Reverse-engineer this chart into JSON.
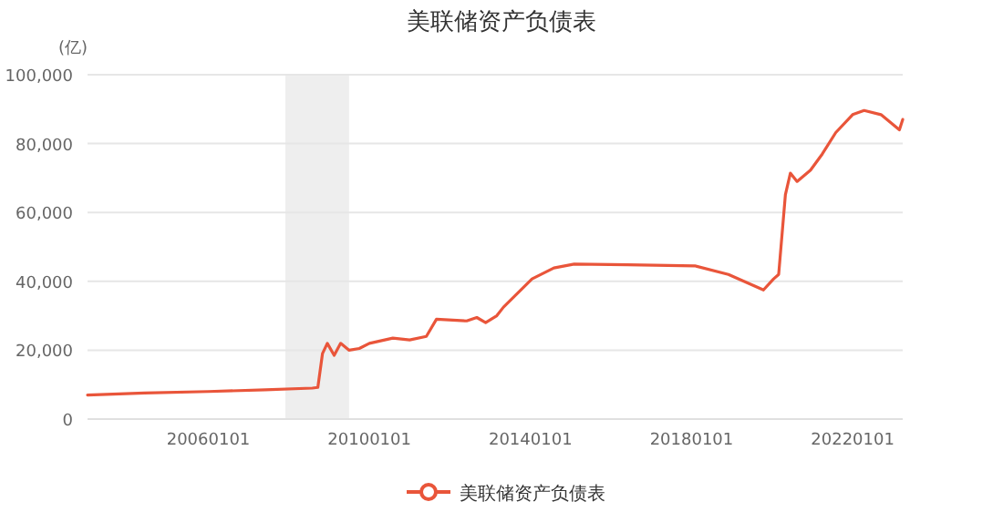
{
  "chart_data": {
    "type": "line",
    "title": "美联储资产负债表",
    "ylabel": "(亿)",
    "x": [
      "2003-01-01",
      "2004-06-01",
      "2006-01-01",
      "2007-06-01",
      "2008-08-01",
      "2008-09-20",
      "2008-11-01",
      "2008-12-15",
      "2009-02-15",
      "2009-04-15",
      "2009-07-01",
      "2009-10-01",
      "2010-01-01",
      "2010-08-01",
      "2011-01-01",
      "2011-06-01",
      "2011-09-01",
      "2012-06-01",
      "2012-09-01",
      "2012-11-20",
      "2013-03-01",
      "2013-05-01",
      "2014-01-15",
      "2014-08-01",
      "2015-02-01",
      "2016-06-01",
      "2018-02-01",
      "2018-12-01",
      "2019-10-15",
      "2020-01-15",
      "2020-03-01",
      "2020-05-01",
      "2020-06-15",
      "2020-08-15",
      "2020-12-15",
      "2021-04-01",
      "2021-08-01",
      "2022-01-01",
      "2022-04-15",
      "2022-09-15",
      "2023-03-01",
      "2023-03-31"
    ],
    "series": [
      {
        "name": "美联储资产负债表",
        "color": "#e9553a",
        "values": [
          7000,
          7600,
          8000,
          8500,
          9000,
          9200,
          19000,
          22000,
          18500,
          22000,
          20000,
          20500,
          22000,
          23500,
          23000,
          24000,
          29000,
          28500,
          29500,
          28000,
          30000,
          32500,
          40700,
          43900,
          45000,
          44800,
          44500,
          42000,
          37500,
          40700,
          42000,
          65200,
          71400,
          69000,
          72300,
          77000,
          83200,
          88400,
          89600,
          88400,
          84000,
          87000
        ]
      }
    ],
    "xlim": [
      "2003-01-01",
      "2023-03-31"
    ],
    "xticks": [
      {
        "value": "2006-01-01",
        "label": "20060101"
      },
      {
        "value": "2010-01-01",
        "label": "20100101"
      },
      {
        "value": "2014-01-01",
        "label": "20140101"
      },
      {
        "value": "2018-01-01",
        "label": "20180101"
      },
      {
        "value": "2022-01-01",
        "label": "20220101"
      }
    ],
    "ylim": [
      0,
      100000
    ],
    "yticks": [
      {
        "value": 0,
        "label": "0"
      },
      {
        "value": 20000,
        "label": "20,000"
      },
      {
        "value": 40000,
        "label": "40,000"
      },
      {
        "value": 60000,
        "label": "60,000"
      },
      {
        "value": 80000,
        "label": "80,000"
      },
      {
        "value": 100000,
        "label": "100,000"
      }
    ],
    "bands": [
      {
        "axis": "x",
        "from": "2007-12-01",
        "to": "2009-06-30",
        "color": "#eeeeee"
      }
    ],
    "grid": "y",
    "legend": "bottom",
    "marker": "none",
    "line_style": "solid"
  }
}
